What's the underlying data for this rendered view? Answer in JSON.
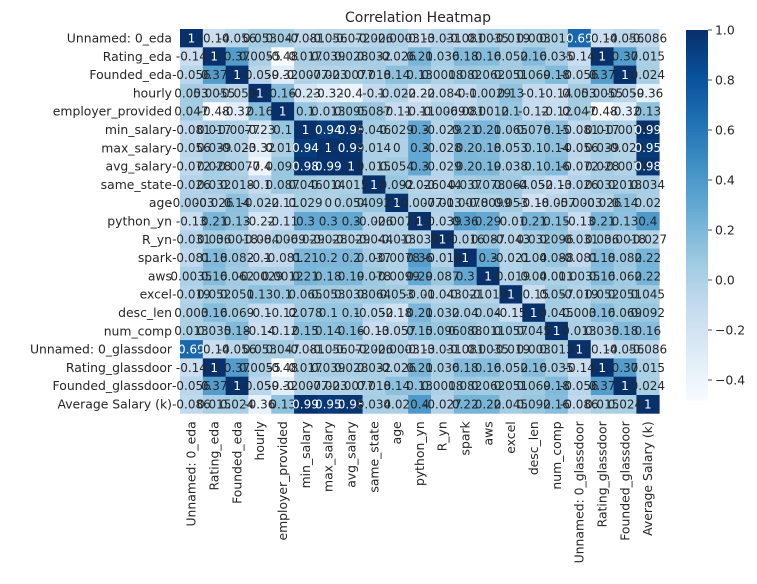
{
  "chart_data": {
    "type": "heatmap",
    "title": "Correlation Heatmap",
    "labels": [
      "Unnamed: 0_eda",
      "Rating_eda",
      "Founded_eda",
      "hourly",
      "employer_provided",
      "min_salary",
      "max_salary",
      "avg_salary",
      "same_state",
      "age",
      "python_yn",
      "R_yn",
      "spark",
      "aws",
      "excel",
      "desc_len",
      "num_comp",
      "Unnamed: 0_glassdoor",
      "Rating_glassdoor",
      "Founded_glassdoor",
      "Average Salary (k)"
    ],
    "matrix": [
      [
        1,
        -0.14,
        -0.056,
        0.053,
        0.047,
        -0.081,
        -0.056,
        -0.072,
        -0.026,
        -0.0003,
        -0.13,
        -0.031,
        -0.081,
        0.0035,
        -0.019,
        0.003,
        0.013,
        0.69,
        -0.14,
        -0.056,
        -0.086
      ],
      [
        -0.14,
        1,
        0.37,
        0.0055,
        -0.48,
        0.017,
        0.039,
        0.028,
        0.032,
        -0.026,
        0.21,
        0.036,
        0.18,
        0.16,
        0.052,
        0.16,
        0.035,
        -0.14,
        1,
        0.37,
        0.015
      ],
      [
        -0.056,
        0.37,
        1,
        -0.059,
        -0.32,
        -0.0077,
        -0.023,
        -0.0077,
        0.018,
        0.14,
        0.13,
        0.0018,
        0.082,
        0.062,
        0.051,
        0.069,
        0.18,
        -0.056,
        0.37,
        1,
        0.024
      ],
      [
        0.053,
        0.0055,
        -0.059,
        1,
        0.16,
        -0.23,
        -0.32,
        -0.4,
        -0.1,
        -0.022,
        -0.22,
        -0.084,
        -0.1,
        -0.0029,
        0.13,
        -0.1,
        -0.14,
        0.053,
        0.0055,
        -0.059,
        -0.36
      ],
      [
        0.047,
        -0.48,
        -0.32,
        0.16,
        1,
        0.1,
        0.013,
        0.095,
        0.087,
        -0.11,
        -0.11,
        -0.0069,
        -0.081,
        0.0012,
        0.1,
        -0.12,
        -0.12,
        0.047,
        -0.48,
        -0.32,
        0.13
      ],
      [
        -0.081,
        0.017,
        -0.0077,
        -0.23,
        0.1,
        1,
        0.94,
        0.98,
        0.046,
        0.029,
        0.3,
        -0.029,
        0.21,
        0.21,
        0.065,
        0.078,
        0.15,
        -0.081,
        0.017,
        -0.0077,
        0.99
      ],
      [
        -0.056,
        0.039,
        -0.023,
        -0.32,
        0.013,
        0.94,
        1,
        0.99,
        0.014,
        0.0,
        0.3,
        -0.028,
        0.2,
        0.18,
        0.053,
        0.1,
        0.14,
        -0.056,
        0.039,
        -0.023,
        0.95
      ],
      [
        -0.072,
        0.028,
        -0.0077,
        -0.4,
        0.095,
        0.98,
        0.99,
        1,
        0.015,
        0.054,
        0.3,
        -0.029,
        0.2,
        0.19,
        0.038,
        0.1,
        0.16,
        -0.072,
        0.028,
        -0.0077,
        0.98
      ],
      [
        -0.026,
        0.032,
        0.018,
        -0.1,
        0.087,
        0.046,
        0.014,
        0.015,
        1,
        0.092,
        -0.026,
        -0.044,
        0.037,
        0.078,
        0.064,
        -0.052,
        -0.13,
        -0.026,
        0.032,
        0.018,
        0.034
      ],
      [
        -0.0003,
        -0.026,
        0.14,
        -0.022,
        -0.11,
        0.029,
        0.0,
        0.054,
        0.092,
        1,
        -0.0077,
        -0.013,
        -0.0078,
        -0.0099,
        0.053,
        -0.18,
        -0.057,
        -0.0003,
        -0.026,
        0.14,
        0.02
      ],
      [
        -0.13,
        0.21,
        0.13,
        -0.22,
        -0.11,
        0.3,
        0.3,
        0.3,
        -0.026,
        -0.0077,
        1,
        -0.039,
        0.36,
        0.29,
        -0.01,
        0.21,
        0.15,
        -0.13,
        0.21,
        0.13,
        0.4
      ],
      [
        -0.031,
        0.036,
        0.0018,
        -0.084,
        -0.0069,
        -0.029,
        -0.028,
        -0.029,
        -0.044,
        -0.013,
        -0.039,
        1,
        -0.016,
        0.087,
        -0.043,
        0.032,
        0.096,
        -0.031,
        0.036,
        0.0018,
        -0.027
      ],
      [
        -0.081,
        0.18,
        0.082,
        -0.1,
        -0.081,
        0.21,
        0.2,
        0.2,
        0.037,
        -0.0078,
        0.36,
        -0.016,
        1,
        0.3,
        -0.021,
        0.04,
        0.088,
        -0.081,
        0.18,
        0.082,
        0.22
      ],
      [
        0.0035,
        0.16,
        0.062,
        -0.0029,
        0.0012,
        0.21,
        0.18,
        0.19,
        0.078,
        -0.0099,
        0.29,
        0.087,
        0.3,
        1,
        -0.019,
        0.04,
        0.011,
        0.0035,
        0.16,
        0.062,
        0.22
      ],
      [
        -0.019,
        0.052,
        0.051,
        0.13,
        0.1,
        0.065,
        0.053,
        0.038,
        0.064,
        0.053,
        -0.01,
        -0.043,
        -0.021,
        -0.019,
        1,
        -0.15,
        0.057,
        -0.019,
        0.052,
        0.051,
        0.045
      ],
      [
        0.003,
        0.16,
        0.069,
        -0.1,
        -0.12,
        0.078,
        0.1,
        0.1,
        -0.052,
        -0.18,
        0.21,
        0.032,
        0.04,
        0.04,
        -0.15,
        1,
        0.045,
        0.003,
        0.16,
        0.069,
        0.092
      ],
      [
        0.013,
        0.035,
        0.18,
        -0.14,
        -0.12,
        0.15,
        0.14,
        0.16,
        -0.13,
        -0.057,
        0.15,
        0.096,
        0.088,
        0.011,
        0.057,
        0.045,
        1,
        0.013,
        0.035,
        0.18,
        0.16
      ],
      [
        0.69,
        -0.14,
        -0.056,
        0.053,
        0.047,
        -0.081,
        -0.056,
        -0.072,
        -0.026,
        -0.0003,
        -0.13,
        -0.031,
        -0.081,
        0.0035,
        -0.019,
        0.003,
        0.013,
        1,
        -0.14,
        -0.056,
        -0.086
      ],
      [
        -0.14,
        1,
        0.37,
        0.0055,
        -0.48,
        0.017,
        0.039,
        0.028,
        0.032,
        -0.026,
        0.21,
        0.036,
        0.18,
        0.16,
        0.052,
        0.16,
        0.035,
        -0.14,
        1,
        0.37,
        0.015
      ],
      [
        -0.056,
        0.37,
        1,
        -0.059,
        -0.32,
        -0.0077,
        -0.023,
        -0.0077,
        0.018,
        0.14,
        0.13,
        0.0018,
        0.082,
        0.062,
        0.051,
        0.069,
        0.18,
        -0.056,
        0.37,
        1,
        0.024
      ],
      [
        -0.086,
        0.015,
        0.024,
        -0.36,
        0.13,
        0.99,
        0.95,
        0.98,
        0.034,
        0.02,
        0.4,
        -0.027,
        0.22,
        0.22,
        0.045,
        0.092,
        0.16,
        -0.086,
        0.015,
        0.024,
        1
      ]
    ],
    "colorbar": {
      "range": [
        -0.48,
        1
      ],
      "ticks": [
        "1.0",
        "0.8",
        "0.6",
        "0.4",
        "0.2",
        "0.0",
        "−0.2",
        "−0.4"
      ],
      "tick_values": [
        1.0,
        0.8,
        0.6,
        0.4,
        0.2,
        0.0,
        -0.2,
        -0.4
      ],
      "colormap": "Blues"
    },
    "annotations_visible": true,
    "grid": false
  }
}
